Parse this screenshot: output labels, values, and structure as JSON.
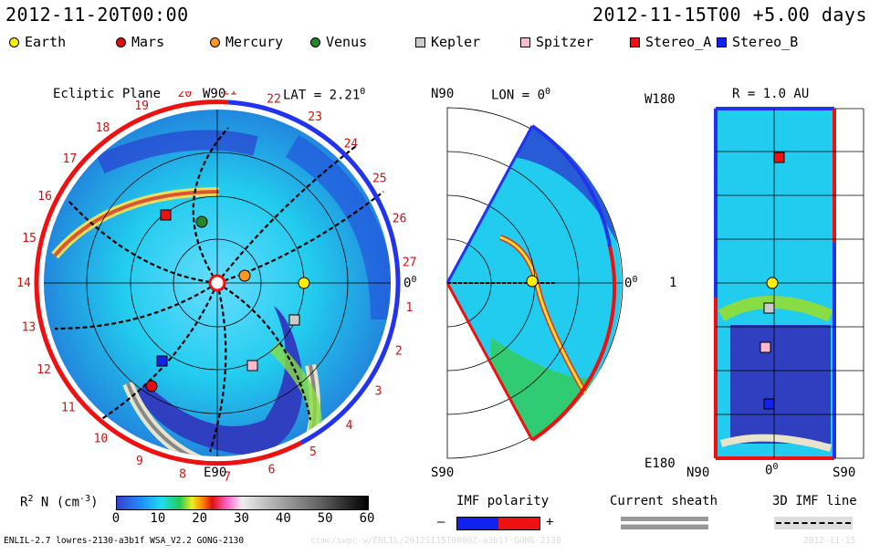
{
  "header": {
    "left_date": "2012-11-20T00:00",
    "right_date": "2012-11-15T00 +5.00 days"
  },
  "legend": [
    {
      "label": "Earth",
      "shape": "circle",
      "color": "#ffee00"
    },
    {
      "label": "Mars",
      "shape": "circle",
      "color": "#dd1111"
    },
    {
      "label": "Mercury",
      "shape": "circle",
      "color": "#ff9922"
    },
    {
      "label": "Venus",
      "shape": "circle",
      "color": "#22882a"
    },
    {
      "label": "Kepler",
      "shape": "square",
      "color": "#cccccc"
    },
    {
      "label": "Spitzer",
      "shape": "square",
      "color": "#ffbbcc"
    },
    {
      "label": "Stereo_A",
      "shape": "square",
      "color": "#ee1111"
    },
    {
      "label": "Stereo_B",
      "shape": "square",
      "color": "#1122ee"
    }
  ],
  "ecliptic": {
    "title": "Ecliptic Plane",
    "top_label": "W90",
    "bottom_label": "E90",
    "lat_label": "LAT = 2.21",
    "lat_deg": "0",
    "zero_label": "0",
    "zero_deg": "0",
    "rotations": [
      "19",
      "20",
      "21",
      "22",
      "23",
      "24",
      "25",
      "26",
      "27",
      "1",
      "2",
      "3",
      "4",
      "5",
      "6",
      "7",
      "8",
      "9",
      "10",
      "11",
      "12",
      "13",
      "14",
      "15",
      "16",
      "17",
      "18"
    ]
  },
  "meridional": {
    "north_label": "N90",
    "south_label": "S90",
    "lon_label": "LON = 0",
    "lon_deg": "0",
    "zero_label": "0",
    "zero_deg": "0"
  },
  "radial": {
    "title": "R = 1.0 AU",
    "top_left": "W180",
    "bottom_left": "E180",
    "mid_left": "1",
    "x_labels": [
      "N90",
      "0",
      "S90"
    ],
    "x_mid_deg": "0"
  },
  "colorbar": {
    "label_prefix": "R",
    "label_sup": "2",
    "label_suffix": " N (cm",
    "label_exp": "-3",
    "label_end": ")",
    "ticks": [
      "0",
      "10",
      "20",
      "30",
      "40",
      "50",
      "60"
    ]
  },
  "imf": {
    "title": "IMF polarity",
    "minus": "–",
    "plus": "+"
  },
  "sheath": {
    "title": "Current sheath"
  },
  "imf3d": {
    "title": "3D IMF line"
  },
  "footer": {
    "model": "ENLIL-2.7 lowres-2130-a3b1f WSA_V2.2 GONG-2130",
    "watermark": "ccmc/swpc-w/ENLIL/20121115T0000Z-a3b1f-GONG-2130",
    "watermark_date": "2012-11-15"
  }
}
